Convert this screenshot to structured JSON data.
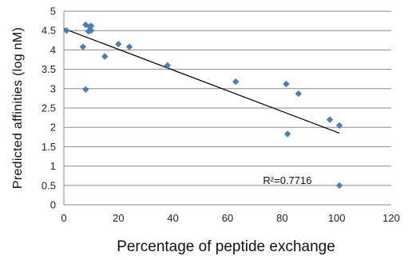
{
  "chart_data": {
    "type": "scatter",
    "xlabel": "Percentage of peptide exchange",
    "ylabel": "Predicted affinities (log nM)",
    "xlim": [
      0,
      120
    ],
    "ylim": [
      0,
      5
    ],
    "xticks": [
      0,
      20,
      40,
      60,
      80,
      100,
      120
    ],
    "yticks": [
      0,
      0.5,
      1,
      1.5,
      2,
      2.5,
      3,
      3.5,
      4,
      4.5,
      5
    ],
    "grid": "horizontal",
    "legend": "none",
    "series": [
      {
        "marker": "diamond",
        "color": "#4a7ebb",
        "points": [
          {
            "x": 1,
            "y": 4.5
          },
          {
            "x": 7,
            "y": 4.08
          },
          {
            "x": 8,
            "y": 4.65
          },
          {
            "x": 8,
            "y": 2.98
          },
          {
            "x": 9,
            "y": 4.48
          },
          {
            "x": 9.5,
            "y": 4.6
          },
          {
            "x": 10,
            "y": 4.62
          },
          {
            "x": 10,
            "y": 4.5
          },
          {
            "x": 15,
            "y": 3.83
          },
          {
            "x": 20,
            "y": 4.15
          },
          {
            "x": 24,
            "y": 4.08
          },
          {
            "x": 38,
            "y": 3.6
          },
          {
            "x": 63,
            "y": 3.18
          },
          {
            "x": 81.5,
            "y": 3.12
          },
          {
            "x": 82,
            "y": 1.83
          },
          {
            "x": 86,
            "y": 2.87
          },
          {
            "x": 97.5,
            "y": 2.2
          },
          {
            "x": 101,
            "y": 2.05
          },
          {
            "x": 101,
            "y": 0.5
          }
        ]
      }
    ],
    "trendline": {
      "type": "linear",
      "x0": 0,
      "y0": 4.55,
      "x1": 101,
      "y1": 1.85,
      "color": "#000000"
    },
    "annotation": {
      "text": "R²=0.7716",
      "x": 73,
      "y": 0.62
    }
  }
}
